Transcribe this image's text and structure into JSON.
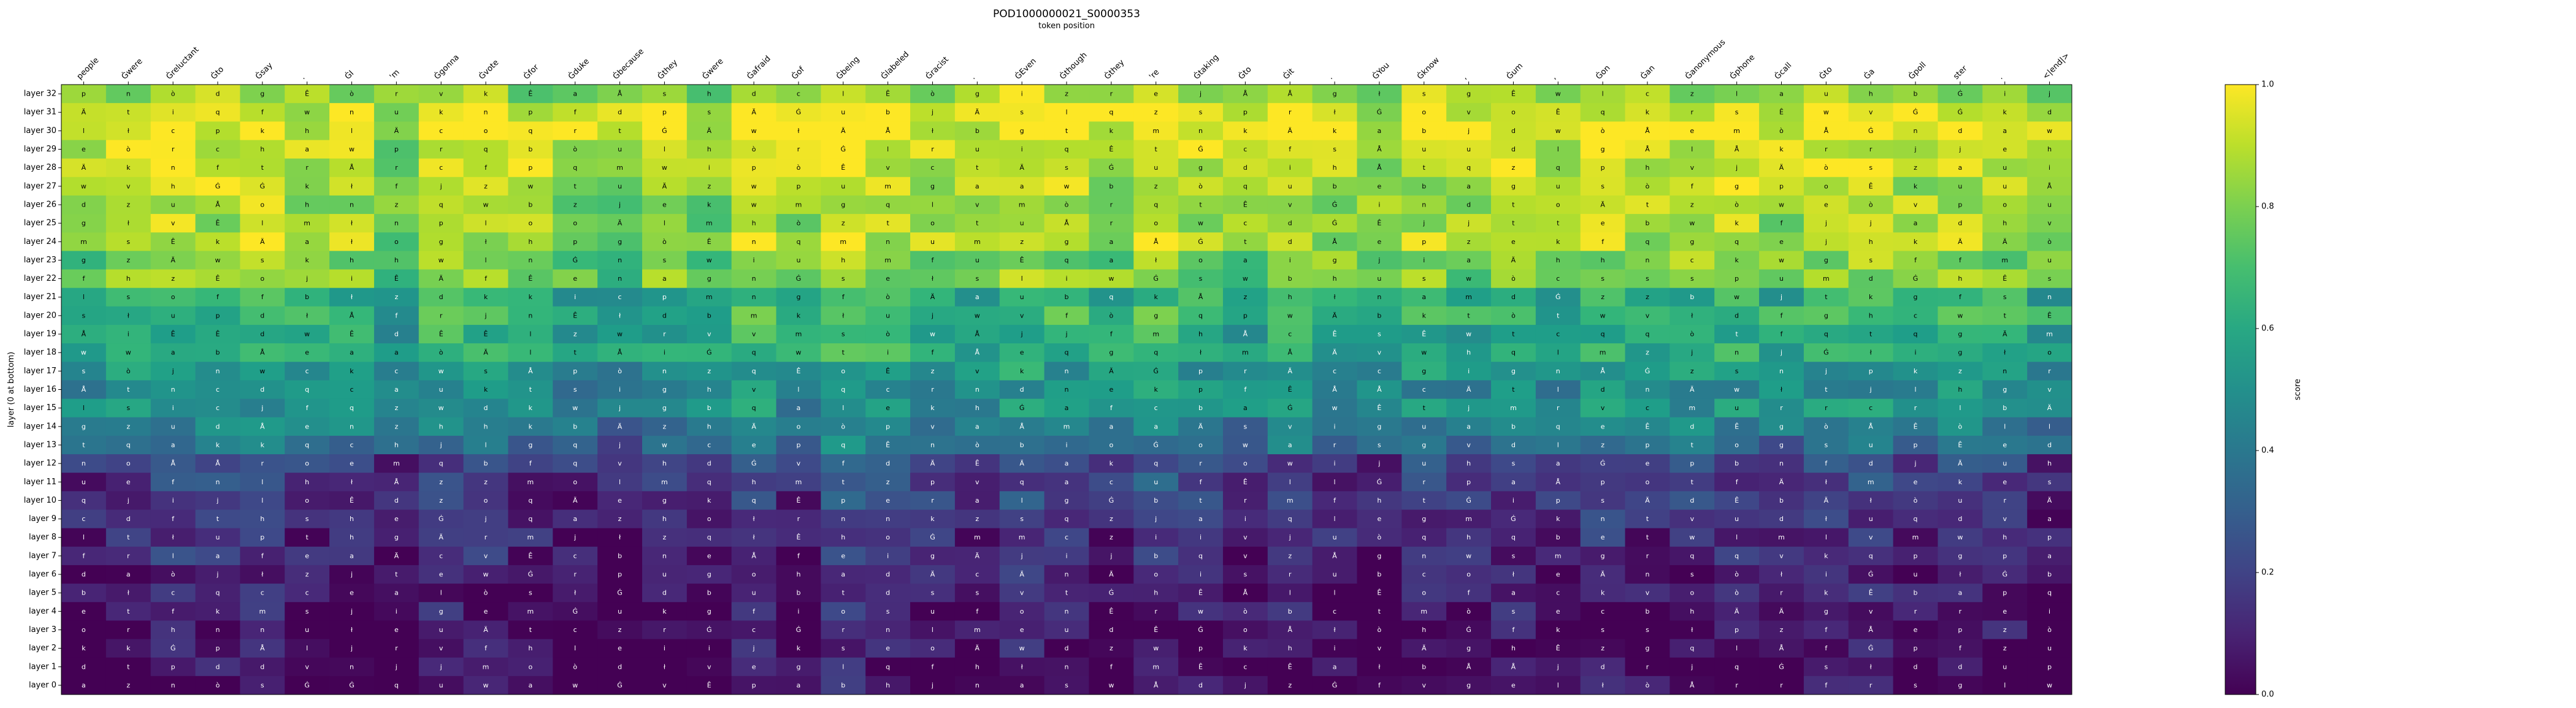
{
  "chart_data": {
    "type": "heatmap",
    "title": "POD1000000021_S0000353",
    "xlabel": "token position",
    "ylabel": "layer (0 at bottom)",
    "colorbar_label": "score",
    "colormap": "viridis",
    "vmin": 0.0,
    "vmax": 1.0,
    "colorbar_ticks": [
      "0.0",
      "0.2",
      "0.4",
      "0.6",
      "0.8",
      "1.0"
    ],
    "tokens": [
      "people",
      "Ġwere",
      "Ġreluctant",
      "Ġto",
      "Ġsay",
      ".",
      "ĠI",
      "'m",
      "Ġgonna",
      "Ġvote",
      "Ġfor",
      "Ġduke",
      "Ġbecause",
      "Ġthey",
      "Ġwere",
      "Ġafraid",
      "Ġof",
      "Ġbeing",
      "Ġlabeled",
      "Ġracist",
      ".",
      "ĠEven",
      "Ġthough",
      "Ġthey",
      "'re",
      "Ġtaking",
      "Ġto",
      "Ġit",
      ".",
      "ĠYou",
      "Ġknow",
      ",",
      "Ġum",
      ",",
      "Ġon",
      "Ġan",
      "Ġanonymous",
      "Ġphone",
      "Ġcall",
      "Ġto",
      "Ġa",
      "Ġpoll",
      "ster",
      ".",
      "<|end|>"
    ],
    "layers": [
      "layer 32",
      "layer 31",
      "layer 30",
      "layer 29",
      "layer 28",
      "layer 27",
      "layer 26",
      "layer 25",
      "layer 24",
      "layer 23",
      "layer 22",
      "layer 21",
      "layer 20",
      "layer 19",
      "layer 18",
      "layer 17",
      "layer 16",
      "layer 15",
      "layer 14",
      "layer 13",
      "layer 12",
      "layer 11",
      "layer 10",
      "layer 9",
      "layer 8",
      "layer 7",
      "layer 6",
      "layer 5",
      "layer 4",
      "layer 3",
      "layer 2",
      "layer 1",
      "layer 0"
    ],
    "grid": false,
    "legend": "colorbar right",
    "row_levels": [
      0.85,
      0.95,
      0.97,
      0.92,
      0.92,
      0.88,
      0.86,
      0.86,
      0.88,
      0.8,
      0.8,
      0.62,
      0.66,
      0.6,
      0.62,
      0.52,
      0.48,
      0.5,
      0.42,
      0.36,
      0.2,
      0.18,
      0.16,
      0.14,
      0.12,
      0.1,
      0.08,
      0.06,
      0.05,
      0.04,
      0.03,
      0.02,
      0.02
    ],
    "col_offsets": [
      -0.05,
      0.0,
      0.05,
      0.02,
      0.03,
      -0.02,
      0.0,
      -0.1,
      0.04,
      0.02,
      -0.03,
      -0.05,
      -0.08,
      0.0,
      -0.06,
      0.05,
      -0.05,
      0.08,
      0.02,
      0.0,
      -0.03,
      0.06,
      0.02,
      -0.02,
      0.07,
      0.0,
      -0.04,
      0.03,
      -0.03,
      -0.06,
      0.01,
      -0.02,
      0.02,
      -0.05,
      0.03,
      -0.01,
      0.01,
      0.02,
      -0.03,
      0.02,
      0.03,
      -0.01,
      0.01,
      0.0,
      -0.06
    ]
  }
}
